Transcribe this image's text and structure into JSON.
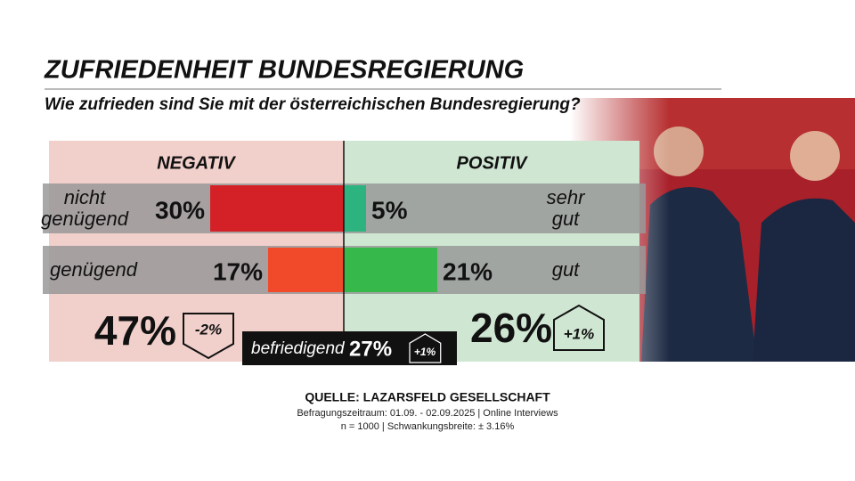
{
  "chart_data": {
    "type": "diverging_bar",
    "title": "ZUFRIEDENHEIT BUNDESREGIERUNG",
    "subtitle": "Wie zufrieden sind Sie mit der österreichischen Bundesregierung?",
    "negative": {
      "name": "NEGATIV",
      "categories": [
        "nicht genügend",
        "genügend"
      ],
      "values": [
        30,
        17
      ],
      "value_labels": [
        "30%",
        "17%"
      ],
      "colors": [
        "#d42027",
        "#f04a2a"
      ],
      "panel_color": "#f1cfcb",
      "total": 47,
      "total_label": "47%",
      "change": -2,
      "change_label": "-2%"
    },
    "positive": {
      "name": "POSITIV",
      "categories": [
        "sehr gut",
        "gut"
      ],
      "values": [
        5,
        21
      ],
      "value_labels": [
        "5%",
        "21%"
      ],
      "colors": [
        "#2db37f",
        "#37b84a"
      ],
      "panel_color": "#cfe6d2",
      "total": 26,
      "total_label": "26%",
      "change": 1,
      "change_label": "+1%"
    },
    "neutral": {
      "name": "befriedigend",
      "value": 27,
      "value_label": "27%",
      "change": 1,
      "change_label": "+1%"
    },
    "source": [
      "QUELLE:  LAZARSFELD GESELLSCHAFT",
      "Befragungszeitraum: 01.09. - 02.09.2025 | Online Interviews",
      "n = 1000 |  Schwankungsbreite: ± 3.16%"
    ]
  }
}
